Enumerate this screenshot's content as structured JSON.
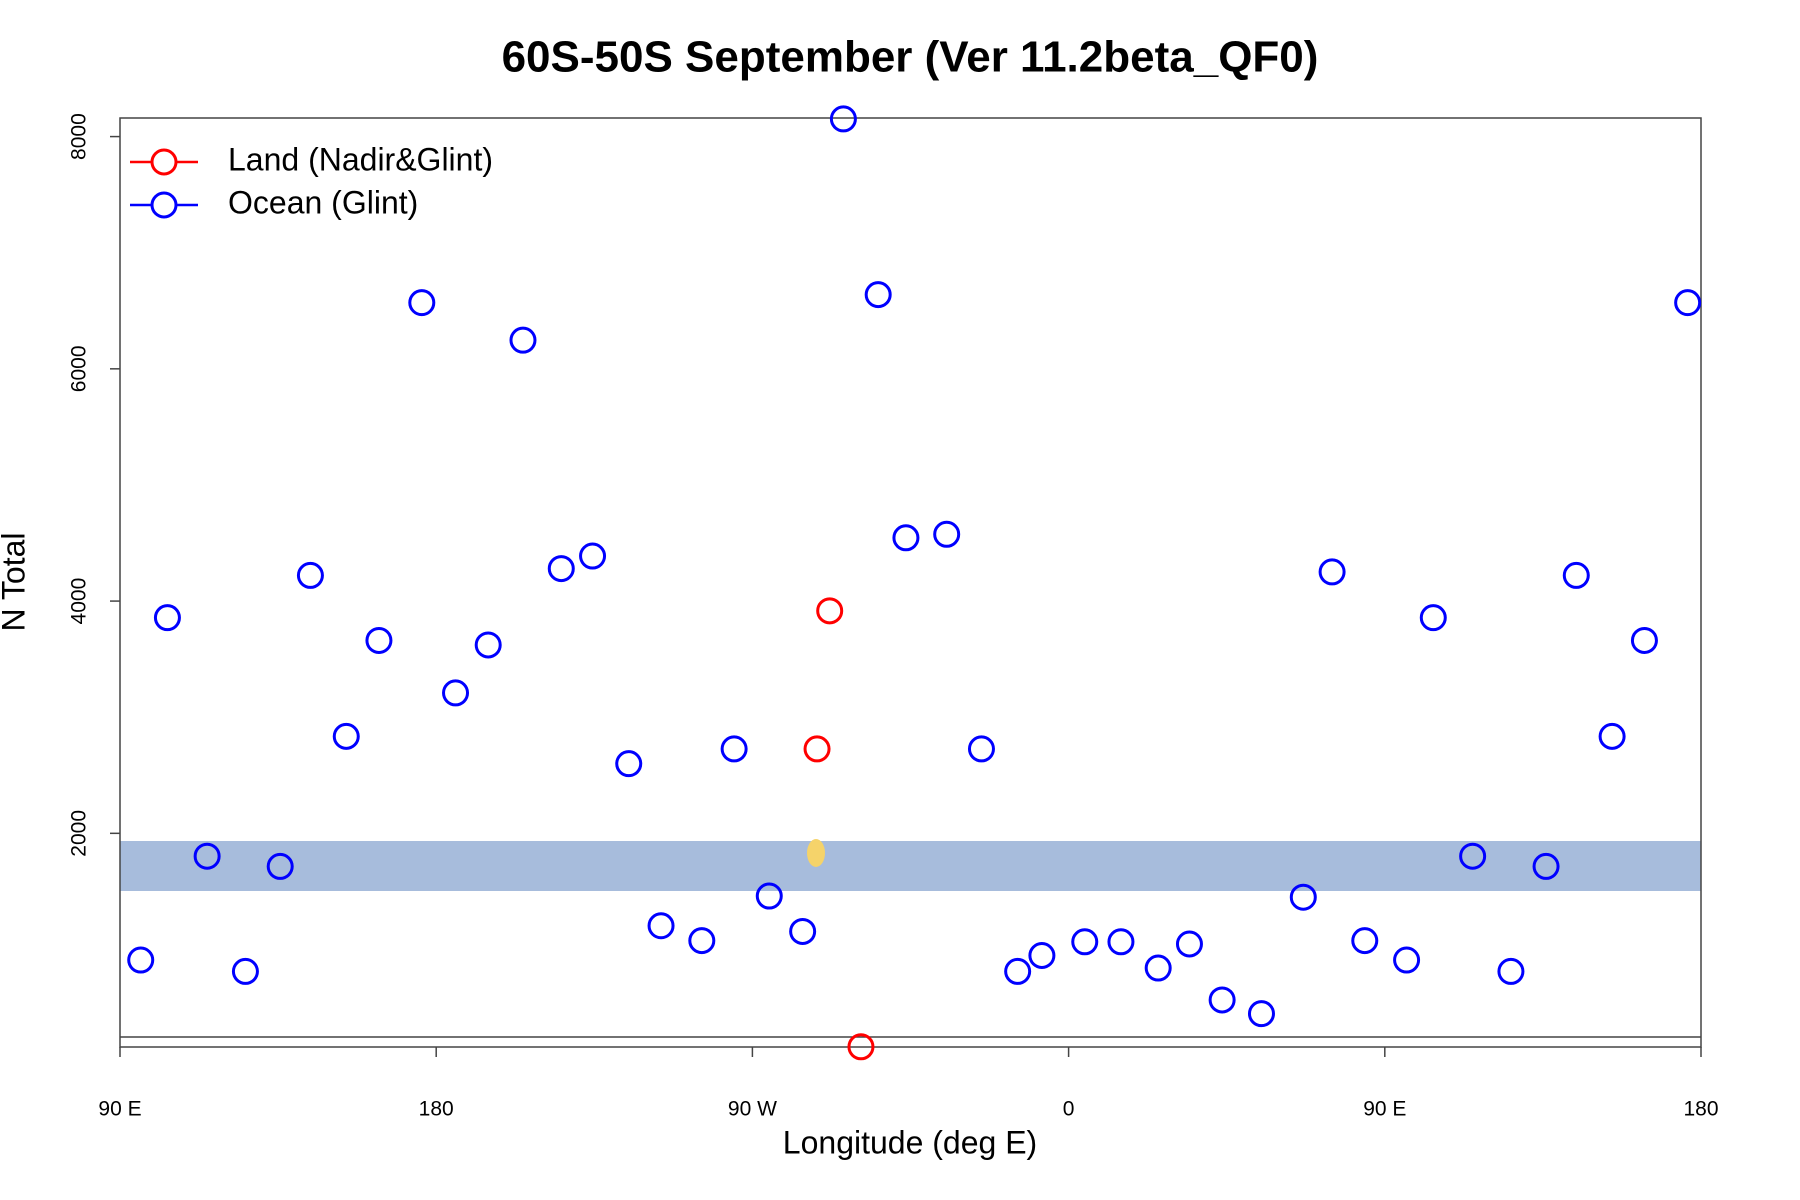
{
  "chart_data": {
    "type": "scatter",
    "title": "60S-50S September (Ver 11.2beta_QF0)",
    "x_label": "Longitude (deg E)",
    "y_label": "N Total",
    "xlim": [
      90,
      540
    ],
    "ylim": [
      160,
      8160
    ],
    "xticks": [
      {
        "value": 90,
        "label": "90 E"
      },
      {
        "value": 180,
        "label": "180"
      },
      {
        "value": 270,
        "label": "90 W"
      },
      {
        "value": 360,
        "label": "0"
      },
      {
        "value": 450,
        "label": "90 E"
      },
      {
        "value": 540,
        "label": "180"
      }
    ],
    "yticks": [
      2000,
      4000,
      6000,
      8000
    ],
    "legend": "top-left",
    "series": [
      {
        "name": "Land (Nadir&Glint)",
        "color": "#ff0000",
        "x": [
          292.0,
          288.4,
          300.9
        ],
        "values": [
          3916,
          2727,
          162
        ]
      },
      {
        "name": "Ocean (Glint)",
        "color": "#0000ff",
        "x": [
          95.9,
          103.5,
          114.8,
          125.7,
          135.6,
          144.2,
          154.4,
          163.7,
          175.9,
          185.5,
          194.8,
          204.7,
          215.6,
          224.5,
          234.8,
          244.0,
          255.6,
          264.8,
          274.8,
          284.3,
          295.9,
          305.8,
          313.7,
          325.3,
          335.2,
          345.5,
          352.4,
          364.6,
          374.9,
          385.5,
          394.4,
          403.7,
          414.9,
          426.8,
          435.0,
          444.3,
          456.2,
          463.8,
          475.0,
          485.9,
          495.9,
          504.5,
          514.7,
          523.9,
          536.2
        ],
        "values": [
          909,
          3857,
          1803,
          811,
          1715,
          4221,
          2835,
          3661,
          6570,
          3209,
          3622,
          6247,
          4280,
          4388,
          2600,
          1204,
          1076,
          2727,
          1460,
          1155,
          8152,
          6639,
          4545,
          4575,
          2727,
          811,
          948,
          1066,
          1066,
          840,
          1047,
          565,
          447,
          1450,
          4251,
          1076,
          909,
          3857,
          1803,
          811,
          1715,
          4221,
          2835,
          3661,
          6570
        ]
      }
    ]
  }
}
